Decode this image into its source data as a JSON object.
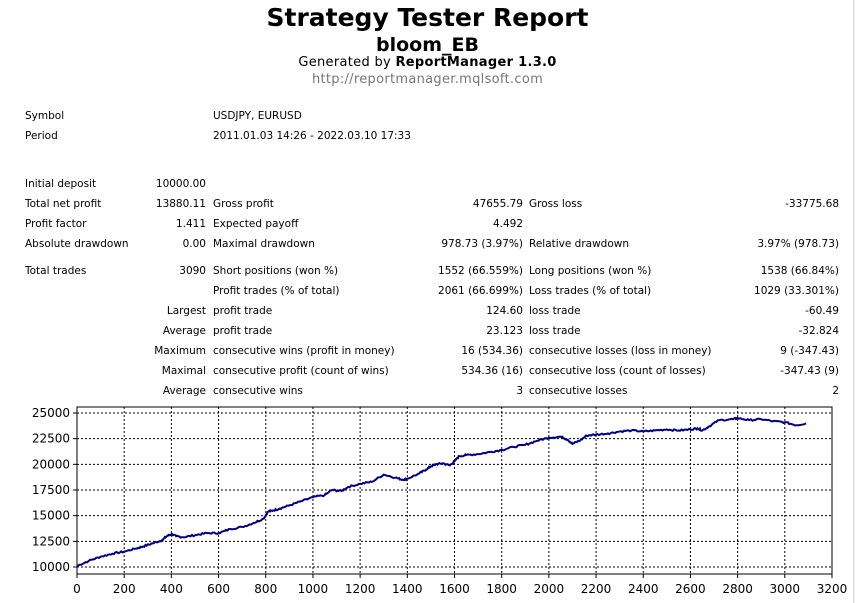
{
  "header": {
    "title": "Strategy Tester Report",
    "subtitle": "bloom_EB",
    "generated_prefix": "Generated by",
    "generator": "ReportManager 1.3.0",
    "url": "http://reportmanager.mqlsoft.com"
  },
  "info": {
    "symbol_label": "Symbol",
    "symbol_value": "USDJPY, EURUSD",
    "period_label": "Period",
    "period_value": "2011.01.03 14:26 - 2022.03.10 17:33"
  },
  "stats": {
    "initial_deposit": {
      "label": "Initial deposit",
      "value": "10000.00"
    },
    "total_net_profit": {
      "label": "Total net profit",
      "value": "13880.11"
    },
    "gross_profit": {
      "label": "Gross profit",
      "value": "47655.79"
    },
    "gross_loss": {
      "label": "Gross loss",
      "value": "-33775.68"
    },
    "profit_factor": {
      "label": "Profit factor",
      "value": "1.411"
    },
    "expected_payoff": {
      "label": "Expected payoff",
      "value": "4.492"
    },
    "absolute_drawdown": {
      "label": "Absolute drawdown",
      "value": "0.00"
    },
    "maximal_drawdown": {
      "label": "Maximal drawdown",
      "value": "978.73 (3.97%)"
    },
    "relative_drawdown": {
      "label": "Relative drawdown",
      "value": "3.97% (978.73)"
    },
    "total_trades": {
      "label": "Total trades",
      "value": "3090"
    },
    "short_positions": {
      "label": "Short positions (won %)",
      "value": "1552 (66.559%)"
    },
    "long_positions": {
      "label": "Long positions (won %)",
      "value": "1538 (66.84%)"
    },
    "profit_trades": {
      "label": "Profit trades (% of total)",
      "value": "2061 (66.699%)"
    },
    "loss_trades": {
      "label": "Loss trades (% of total)",
      "value": "1029 (33.301%)"
    },
    "largest": {
      "prefix": "Largest",
      "profit_label": "profit trade",
      "profit_value": "124.60",
      "loss_label": "loss trade",
      "loss_value": "-60.49"
    },
    "average": {
      "prefix": "Average",
      "profit_label": "profit trade",
      "profit_value": "23.123",
      "loss_label": "loss trade",
      "loss_value": "-32.824"
    },
    "maximum": {
      "prefix": "Maximum",
      "wins_label": "consecutive wins (profit in money)",
      "wins_value": "16 (534.36)",
      "losses_label": "consecutive losses (loss in money)",
      "losses_value": "9 (-347.43)"
    },
    "maximal": {
      "prefix": "Maximal",
      "profit_label": "consecutive profit (count of wins)",
      "profit_value": "534.36 (16)",
      "loss_label": "consecutive loss (count of losses)",
      "loss_value": "-347.43 (9)"
    },
    "average_consecutive": {
      "prefix": "Average",
      "wins_label": "consecutive wins",
      "wins_value": "3",
      "losses_label": "consecutive losses",
      "losses_value": "2"
    }
  },
  "chart_data": {
    "type": "line",
    "title": "",
    "xlabel": "",
    "ylabel": "",
    "xlim": [
      0,
      3200
    ],
    "ylim": [
      10000,
      25000
    ],
    "x_ticks": [
      0,
      200,
      400,
      600,
      800,
      1000,
      1200,
      1400,
      1600,
      1800,
      2000,
      2200,
      2400,
      2600,
      2800,
      3000,
      3200
    ],
    "y_ticks": [
      10000,
      12500,
      15000,
      17500,
      20000,
      22500,
      25000
    ],
    "grid": true,
    "line_color": "#000080",
    "series": [
      {
        "x": [
          0,
          50,
          100,
          150,
          200,
          250,
          280,
          320,
          360,
          380,
          400,
          420,
          450,
          500,
          550,
          600,
          650,
          700,
          750,
          790,
          810,
          830,
          860,
          900,
          950,
          1000,
          1050,
          1080,
          1120,
          1150,
          1200,
          1250,
          1300,
          1350,
          1380,
          1400,
          1450,
          1480,
          1500,
          1520,
          1550,
          1580,
          1600,
          1620,
          1650,
          1700,
          1750,
          1800,
          1850,
          1900,
          1950,
          2000,
          2050,
          2080,
          2100,
          2130,
          2160,
          2200,
          2250,
          2300,
          2350,
          2400,
          2450,
          2500,
          2550,
          2600,
          2630,
          2650,
          2680,
          2720,
          2780,
          2800,
          2850,
          2900,
          2950,
          3000,
          3050,
          3090
        ],
        "y": [
          10100,
          10600,
          11000,
          11300,
          11500,
          11800,
          12000,
          12300,
          12600,
          13000,
          13200,
          13000,
          12900,
          13100,
          13300,
          13300,
          13700,
          13900,
          14300,
          14700,
          15400,
          15500,
          15700,
          16000,
          16400,
          16800,
          17000,
          17500,
          17400,
          17800,
          18100,
          18300,
          19000,
          18700,
          18500,
          18600,
          19100,
          19500,
          19800,
          20000,
          20100,
          19900,
          20300,
          20800,
          20900,
          21000,
          21200,
          21400,
          21700,
          21900,
          22300,
          22600,
          22700,
          22400,
          22000,
          22300,
          22800,
          22900,
          23000,
          23200,
          23300,
          23200,
          23300,
          23400,
          23300,
          23400,
          23500,
          23300,
          23700,
          24300,
          24400,
          24500,
          24300,
          24400,
          24200,
          24100,
          23800,
          24000
        ]
      }
    ]
  }
}
